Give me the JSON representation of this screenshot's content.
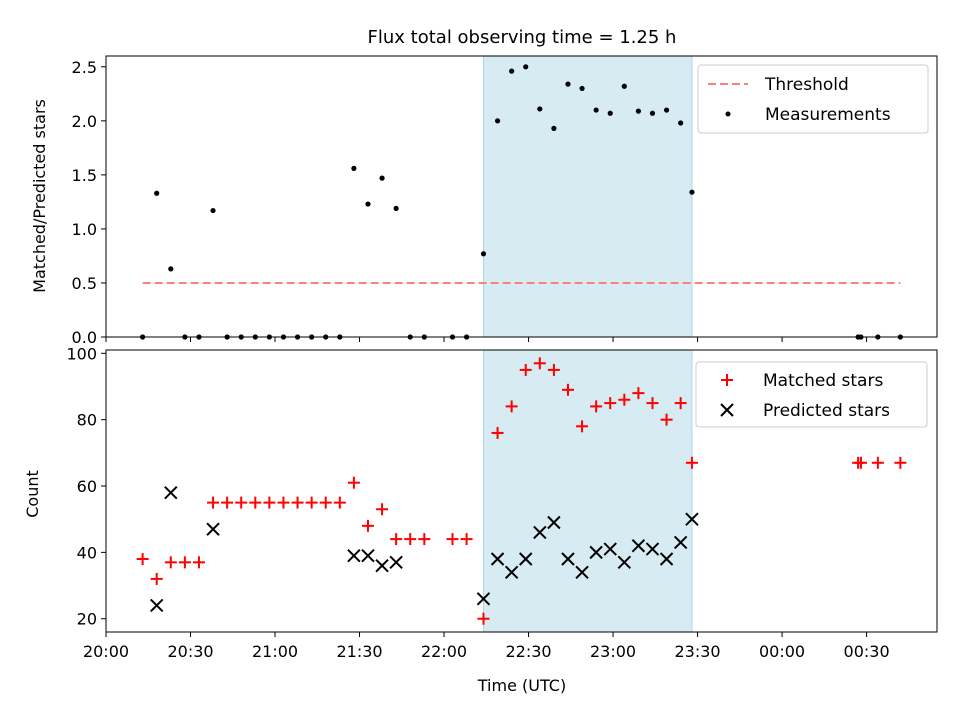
{
  "chart_data": [
    {
      "type": "scatter",
      "title": "Flux total observing time = 1.25 h",
      "xlabel": "",
      "ylabel": "Matched/Predicted stars",
      "xlim": [
        "20:00",
        "00:55"
      ],
      "ylim": [
        0,
        2.6
      ],
      "yticks": [
        0.0,
        0.5,
        1.0,
        1.5,
        2.0,
        2.5
      ],
      "ytick_labels": [
        "0.0",
        "0.5",
        "1.0",
        "1.5",
        "2.0",
        "2.5"
      ],
      "grid": false,
      "legend": "top-right",
      "shaded_interval": {
        "start": "22:14",
        "end": "23:28",
        "color": "#add8e6"
      },
      "series": [
        {
          "name": "Threshold",
          "style": "dashed-line",
          "color": "#ff7f7f",
          "x": [
            "20:13",
            "00:42"
          ],
          "y": [
            0.5,
            0.5
          ]
        },
        {
          "name": "Measurements",
          "style": "dot",
          "color": "#000000",
          "x": [
            "20:13",
            "20:18",
            "20:23",
            "20:28",
            "20:33",
            "20:38",
            "20:43",
            "20:48",
            "20:53",
            "20:58",
            "21:03",
            "21:08",
            "21:13",
            "21:18",
            "21:23",
            "21:28",
            "21:33",
            "21:38",
            "21:43",
            "21:48",
            "21:53",
            "22:03",
            "22:08",
            "22:14",
            "22:19",
            "22:24",
            "22:29",
            "22:34",
            "22:39",
            "22:44",
            "22:49",
            "22:54",
            "22:59",
            "23:04",
            "23:09",
            "23:14",
            "23:19",
            "23:24",
            "23:28",
            "00:27",
            "00:28",
            "00:34",
            "00:42"
          ],
          "y": [
            0.0,
            1.33,
            0.63,
            0.0,
            0.0,
            1.17,
            0.0,
            0.0,
            0.0,
            0.0,
            0.0,
            0.0,
            0.0,
            0.0,
            0.0,
            1.56,
            1.23,
            1.47,
            1.19,
            0.0,
            0.0,
            0.0,
            0.0,
            0.77,
            2.0,
            2.46,
            2.5,
            2.11,
            1.93,
            2.34,
            2.3,
            2.1,
            2.07,
            2.32,
            2.09,
            2.07,
            2.1,
            1.98,
            1.34,
            0.0,
            0.0,
            0.0,
            0.0
          ]
        }
      ]
    },
    {
      "type": "scatter",
      "title": "",
      "xlabel": "Time (UTC)",
      "ylabel": "Count",
      "xlim": [
        "20:00",
        "00:55"
      ],
      "ylim": [
        16,
        101
      ],
      "yticks": [
        20,
        40,
        60,
        80,
        100
      ],
      "ytick_labels": [
        "20",
        "40",
        "60",
        "80",
        "100"
      ],
      "xticks": [
        "20:00",
        "20:30",
        "21:00",
        "21:30",
        "22:00",
        "22:30",
        "23:00",
        "23:30",
        "00:00",
        "00:30"
      ],
      "grid": false,
      "legend": "top-right",
      "shaded_interval": {
        "start": "22:14",
        "end": "23:28",
        "color": "#add8e6"
      },
      "series": [
        {
          "name": "Matched stars",
          "style": "plus",
          "color": "#ff0000",
          "x": [
            "20:13",
            "20:18",
            "20:23",
            "20:28",
            "20:33",
            "20:38",
            "20:43",
            "20:48",
            "20:53",
            "20:58",
            "21:03",
            "21:08",
            "21:13",
            "21:18",
            "21:23",
            "21:28",
            "21:33",
            "21:38",
            "21:43",
            "21:48",
            "21:53",
            "22:03",
            "22:08",
            "22:14",
            "22:19",
            "22:24",
            "22:29",
            "22:34",
            "22:39",
            "22:44",
            "22:49",
            "22:54",
            "22:59",
            "23:04",
            "23:09",
            "23:14",
            "23:19",
            "23:24",
            "23:28",
            "00:27",
            "00:28",
            "00:34",
            "00:42"
          ],
          "y": [
            38,
            32,
            37,
            37,
            37,
            55,
            55,
            55,
            55,
            55,
            55,
            55,
            55,
            55,
            55,
            61,
            48,
            53,
            44,
            44,
            44,
            44,
            44,
            20,
            76,
            84,
            95,
            97,
            95,
            89,
            78,
            84,
            85,
            86,
            88,
            85,
            80,
            85,
            67,
            67,
            67,
            67,
            67
          ]
        },
        {
          "name": "Predicted stars",
          "style": "x",
          "color": "#000000",
          "x": [
            "20:18",
            "20:23",
            "20:38",
            "21:28",
            "21:33",
            "21:38",
            "21:43",
            "22:14",
            "22:19",
            "22:24",
            "22:29",
            "22:34",
            "22:39",
            "22:44",
            "22:49",
            "22:54",
            "22:59",
            "23:04",
            "23:09",
            "23:14",
            "23:19",
            "23:24",
            "23:28"
          ],
          "y": [
            24,
            58,
            47,
            39,
            39,
            36,
            37,
            26,
            38,
            34,
            38,
            46,
            49,
            38,
            34,
            40,
            41,
            37,
            42,
            41,
            38,
            43,
            50
          ]
        }
      ]
    }
  ]
}
